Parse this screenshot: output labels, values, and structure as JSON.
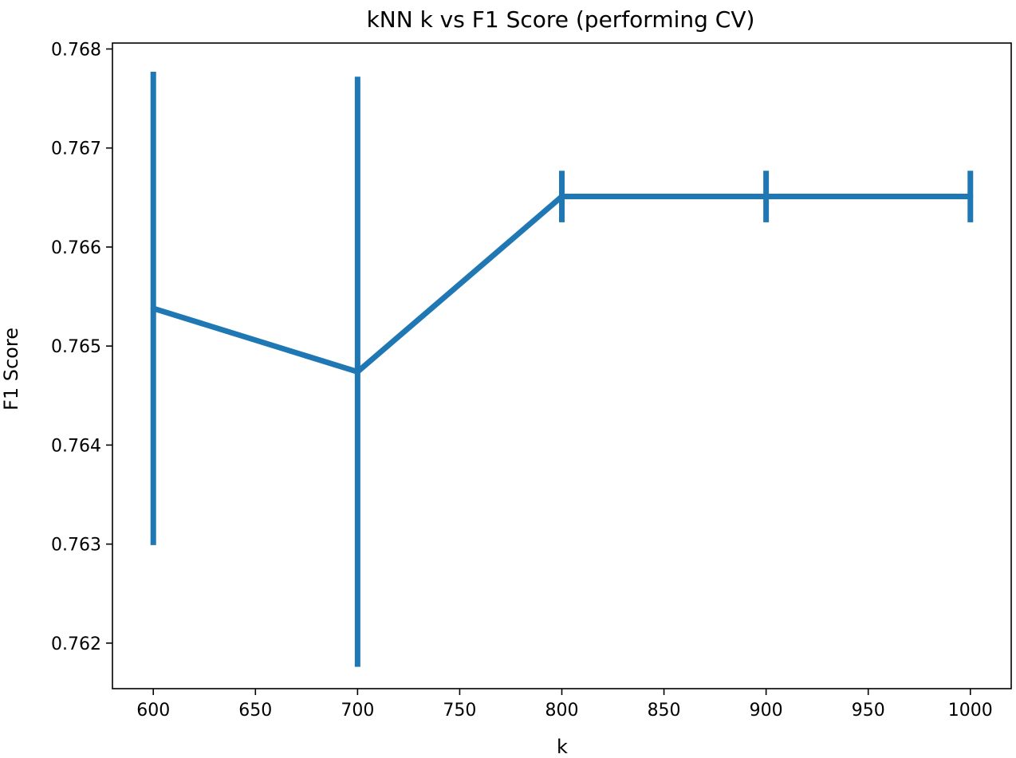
{
  "chart_data": {
    "type": "line",
    "title": "kNN k vs F1 Score (performing CV)",
    "xlabel": "k",
    "ylabel": "F1 Score",
    "xlim": [
      580,
      1020
    ],
    "ylim": [
      0.76154,
      0.76806
    ],
    "xticks": [
      600,
      650,
      700,
      750,
      800,
      850,
      900,
      950,
      1000
    ],
    "xtick_labels": [
      "600",
      "650",
      "700",
      "750",
      "800",
      "850",
      "900",
      "950",
      "1000"
    ],
    "yticks": [
      0.762,
      0.763,
      0.764,
      0.765,
      0.766,
      0.767,
      0.768
    ],
    "ytick_labels": [
      "0.762",
      "0.763",
      "0.764",
      "0.765",
      "0.766",
      "0.767",
      "0.768"
    ],
    "grid": false,
    "legend": "none",
    "series": [
      {
        "color": "#1f77b4",
        "x": [
          600,
          700,
          800,
          900,
          1000
        ],
        "y": [
          0.76538,
          0.76474,
          0.76651,
          0.76651,
          0.76651
        ],
        "error": [
          0.00239,
          0.00298,
          0.00026,
          0.00026,
          0.00026
        ]
      }
    ]
  }
}
